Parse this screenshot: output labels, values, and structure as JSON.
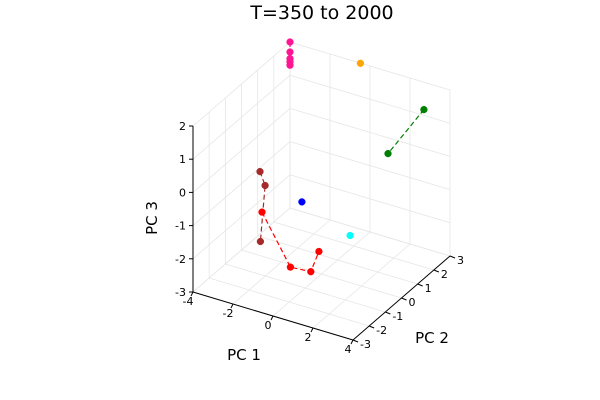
{
  "chart_data": {
    "type": "scatter",
    "projection": "3d",
    "title": "T=350 to 2000",
    "xlabel": "PC 1",
    "ylabel": "PC 2",
    "zlabel": "PC 3",
    "xlim": [
      -4,
      4
    ],
    "ylim": [
      -3,
      3
    ],
    "zlim": [
      -3,
      2
    ],
    "xticks": [
      -4,
      -2,
      0,
      2,
      4
    ],
    "yticks": [
      -3,
      -2,
      -1,
      0,
      1,
      2,
      3
    ],
    "zticks": [
      -3,
      -2,
      -1,
      0,
      1,
      2
    ],
    "grid": true,
    "legend": "none",
    "series": [
      {
        "color": "#ff1493",
        "points": [
          [
            -4.0,
            3.0,
            2.0
          ],
          [
            -4.0,
            3.0,
            1.7
          ],
          [
            -4.0,
            3.0,
            1.5
          ],
          [
            -4.0,
            3.0,
            1.4
          ],
          [
            -4.0,
            3.0,
            1.3
          ]
        ]
      },
      {
        "color": "#ffa500",
        "points": [
          [
            -0.4,
            2.9,
            2.05
          ]
        ]
      },
      {
        "color": "#008000",
        "points": [
          [
            3.3,
            2.25,
            1.6
          ],
          [
            3.0,
            0.4,
            1.0
          ]
        ]
      },
      {
        "color": "#0000ff",
        "points": [
          [
            -0.9,
            -0.1,
            -0.95
          ]
        ]
      },
      {
        "color": "#00ffff",
        "points": [
          [
            2.4,
            -1.2,
            -0.9
          ]
        ]
      },
      {
        "color": "#a52a2a",
        "points": [
          [
            -3.4,
            0.4,
            -0.7
          ],
          [
            -2.9,
            0.1,
            -0.9
          ],
          [
            -1.6,
            -1.8,
            -1.55
          ]
        ]
      },
      {
        "color": "#ff0000",
        "points": [
          [
            -3.3,
            0.4,
            -1.9
          ],
          [
            -0.1,
            -1.8,
            -2.05
          ],
          [
            1.0,
            -1.9,
            -1.95
          ],
          [
            1.0,
            -1.4,
            -1.55
          ]
        ]
      }
    ]
  }
}
